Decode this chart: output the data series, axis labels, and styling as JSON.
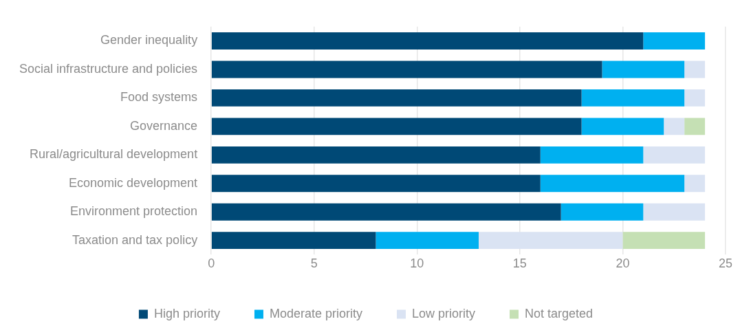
{
  "chart_data": {
    "type": "bar",
    "orientation": "horizontal",
    "stacked": true,
    "categories": [
      "Gender inequality",
      "Social infrastructure and policies",
      "Food systems",
      "Governance",
      "Rural/agricultural development",
      "Economic development",
      "Environment protection",
      "Taxation and tax policy"
    ],
    "series": [
      {
        "name": "High priority",
        "color": "#004976",
        "values": [
          21,
          19,
          18,
          18,
          16,
          16,
          17,
          8
        ]
      },
      {
        "name": "Moderate priority",
        "color": "#00b0f0",
        "values": [
          3,
          4,
          5,
          4,
          5,
          7,
          4,
          5
        ]
      },
      {
        "name": "Low priority",
        "color": "#dae3f3",
        "values": [
          0,
          1,
          1,
          1,
          3,
          1,
          3,
          7
        ]
      },
      {
        "name": "Not targeted",
        "color": "#c5e0b4",
        "values": [
          0,
          0,
          0,
          1,
          0,
          0,
          0,
          4
        ]
      }
    ],
    "xlim": [
      0,
      25
    ],
    "xticks": [
      0,
      5,
      10,
      15,
      20,
      25
    ],
    "grid": "x",
    "legend": "bottom"
  }
}
